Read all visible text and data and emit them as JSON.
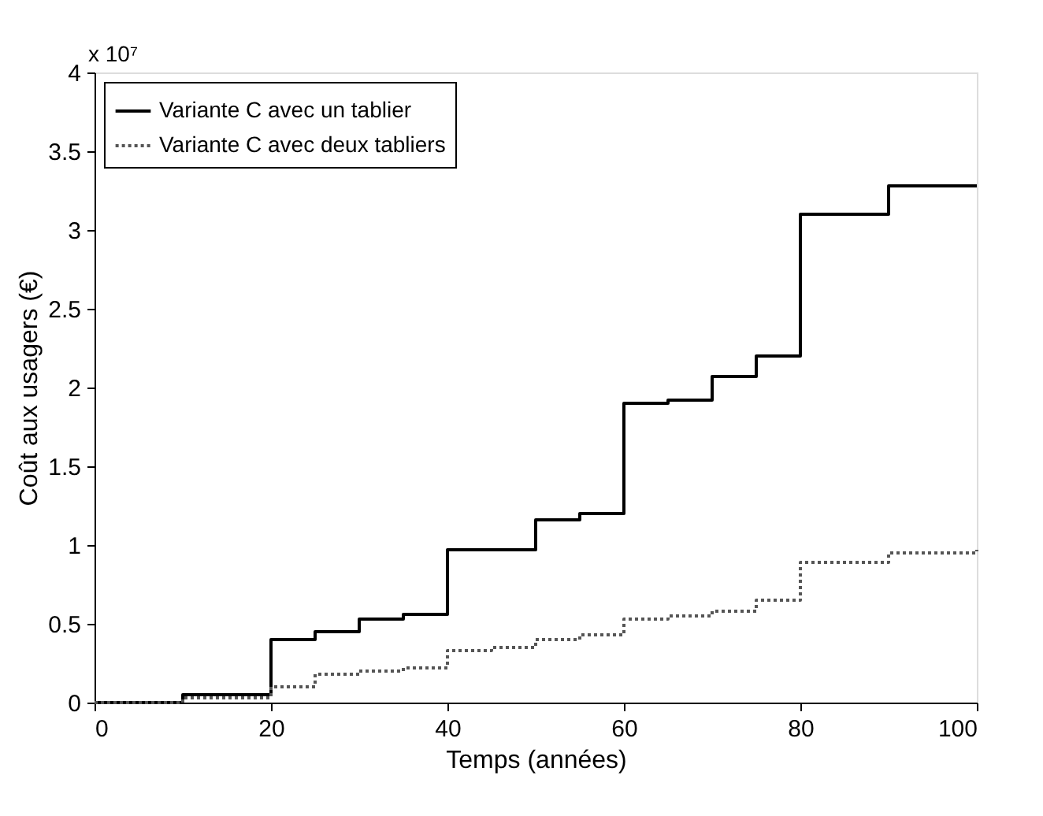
{
  "chart_data": {
    "type": "step",
    "xlabel": "Temps (années)",
    "ylabel": "Coût aux usagers (€)",
    "annotations": [
      "x 10⁷"
    ],
    "x": [
      0,
      10,
      20,
      25,
      30,
      35,
      40,
      45,
      50,
      55,
      60,
      65,
      70,
      75,
      80,
      90,
      100
    ],
    "series": [
      {
        "name": "Variante C avec un tablier",
        "color": "#000000",
        "line_style": "solid",
        "values": [
          0,
          0.05,
          0.4,
          0.45,
          0.53,
          0.56,
          0.97,
          0.97,
          1.16,
          1.2,
          1.9,
          1.92,
          2.07,
          2.2,
          3.1,
          3.28,
          3.28
        ]
      },
      {
        "name": "Variante C avec deux tabliers",
        "color": "#555555",
        "line_style": "dotted",
        "values": [
          0,
          0.03,
          0.1,
          0.18,
          0.2,
          0.22,
          0.33,
          0.35,
          0.4,
          0.43,
          0.53,
          0.55,
          0.58,
          0.65,
          0.89,
          0.95,
          0.97
        ]
      }
    ],
    "xlim": [
      0,
      100
    ],
    "xticks": [
      0,
      20,
      40,
      60,
      80,
      100
    ],
    "ylim": [
      0,
      4
    ],
    "yticks": [
      0,
      0.5,
      1,
      1.5,
      2,
      2.5,
      3,
      3.5,
      4
    ],
    "grid": false,
    "legend": "top left"
  }
}
